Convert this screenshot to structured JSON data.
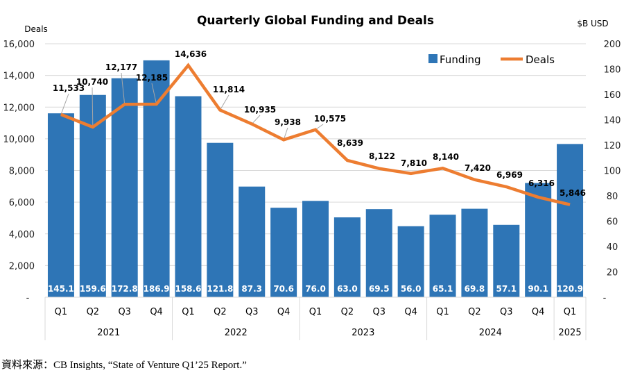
{
  "chart_data": {
    "type": "bar+line",
    "title": "Quarterly Global Funding and Deals",
    "left_axis_label": "Deals",
    "right_axis_label": "$B USD",
    "left_ylim": [
      0,
      16000
    ],
    "right_ylim": [
      0,
      200
    ],
    "left_ticks": [
      "-",
      "2,000",
      "4,000",
      "6,000",
      "8,000",
      "10,000",
      "12,000",
      "14,000",
      "16,000"
    ],
    "right_ticks": [
      "-",
      "20",
      "40",
      "60",
      "80",
      "100",
      "120",
      "140",
      "160",
      "180",
      "200"
    ],
    "grid": true,
    "legend_position": "top-right",
    "categories": [
      "Q1",
      "Q2",
      "Q3",
      "Q4",
      "Q1",
      "Q2",
      "Q3",
      "Q4",
      "Q1",
      "Q2",
      "Q3",
      "Q4",
      "Q1",
      "Q2",
      "Q3",
      "Q4",
      "Q1"
    ],
    "years": [
      {
        "label": "2021",
        "span": 4
      },
      {
        "label": "2022",
        "span": 4
      },
      {
        "label": "2023",
        "span": 4
      },
      {
        "label": "2024",
        "span": 4
      },
      {
        "label": "2025",
        "span": 1
      }
    ],
    "series": [
      {
        "name": "Funding",
        "type": "bar",
        "axis": "right",
        "color": "#2E75B6",
        "values": [
          145.1,
          159.6,
          172.8,
          186.9,
          158.6,
          121.8,
          87.3,
          70.6,
          76.0,
          63.0,
          69.5,
          56.0,
          65.1,
          69.8,
          57.1,
          90.1,
          120.9
        ],
        "labels": [
          "145.1",
          "159.6",
          "172.8",
          "186.9",
          "158.6",
          "121.8",
          "87.3",
          "70.6",
          "76.0",
          "63.0",
          "69.5",
          "56.0",
          "65.1",
          "69.8",
          "57.1",
          "90.1",
          "120.9"
        ]
      },
      {
        "name": "Deals",
        "type": "line",
        "axis": "left",
        "color": "#ED7D31",
        "values": [
          11533,
          10740,
          12177,
          12185,
          14636,
          11814,
          10935,
          9938,
          10575,
          8639,
          8122,
          7810,
          8140,
          7420,
          6969,
          6316,
          5846
        ],
        "labels": [
          "11,533",
          "10,740",
          "12,177",
          "12,185",
          "14,636",
          "11,814",
          "10,935",
          "9,938",
          "10,575",
          "8,639",
          "8,122",
          "7,810",
          "8,140",
          "7,420",
          "6,969",
          "6,316",
          "5,846"
        ]
      }
    ]
  },
  "source": "資料來源：CB Insights, “State of Venture Q1’25 Report.”"
}
